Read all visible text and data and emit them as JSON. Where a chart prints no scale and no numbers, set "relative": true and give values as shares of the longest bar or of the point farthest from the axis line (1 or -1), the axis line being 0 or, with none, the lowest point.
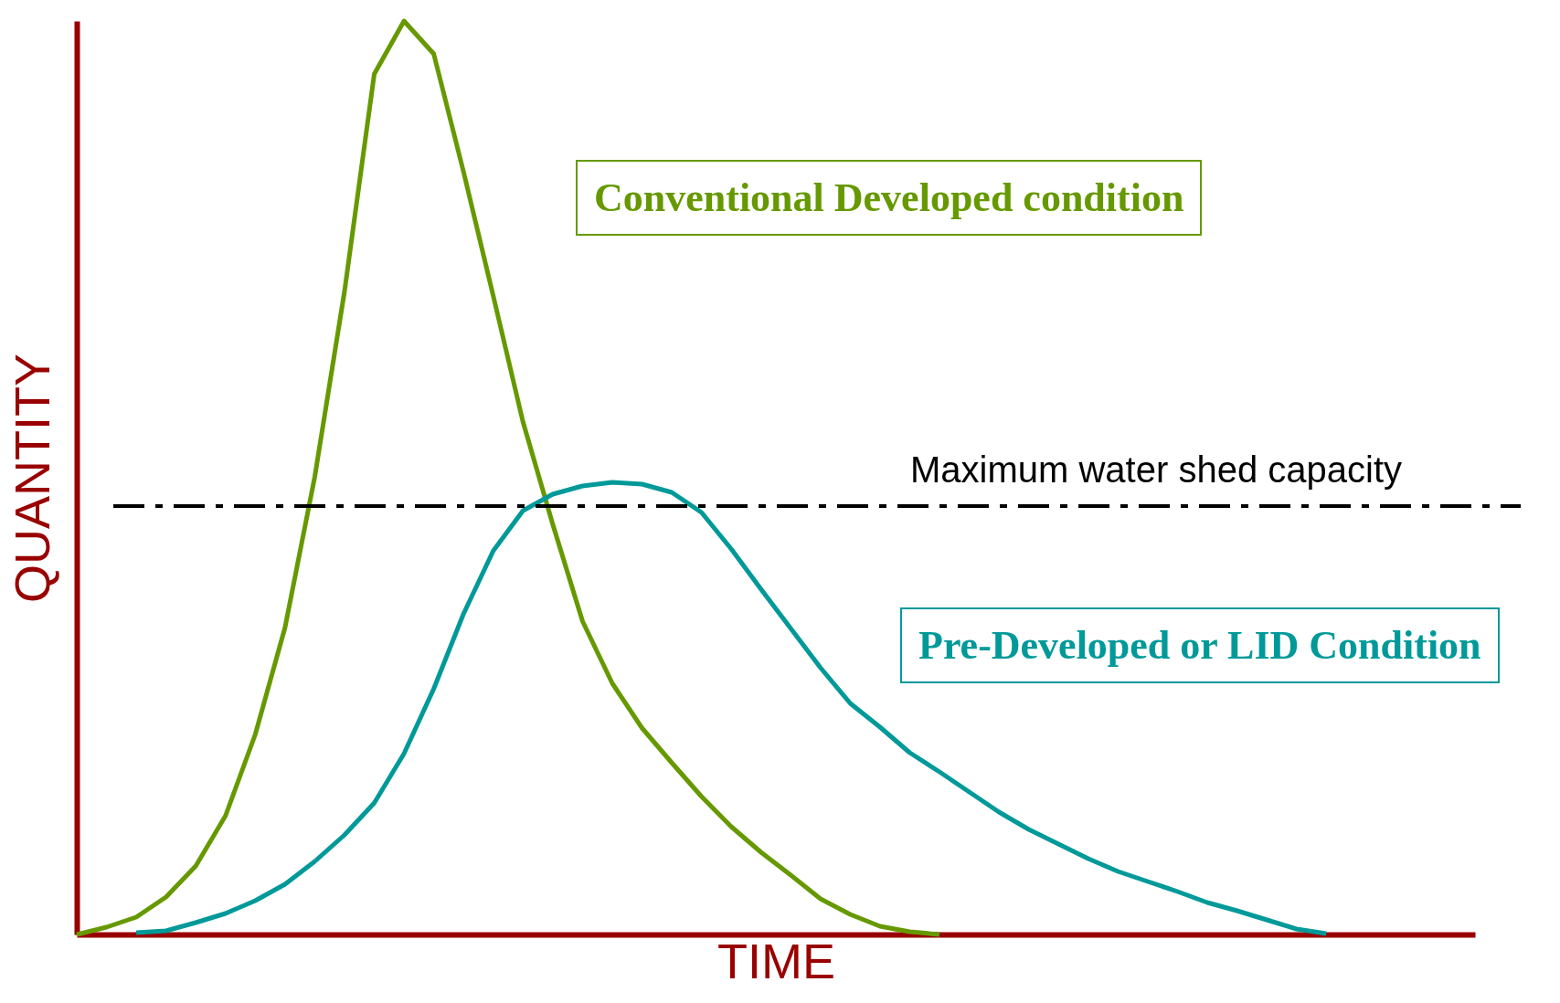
{
  "chart_data": {
    "type": "line",
    "relative": true,
    "xlabel": "TIME",
    "ylabel": "QUANTITY",
    "line_style": "solid",
    "categories": [
      null,
      null,
      null,
      null,
      null,
      null,
      null,
      null,
      null,
      null,
      null,
      null,
      null,
      null,
      null,
      null,
      null,
      null,
      null,
      null,
      null,
      null,
      null,
      null,
      null,
      null,
      null,
      null,
      null,
      null,
      null,
      null,
      null,
      null,
      null,
      null,
      null,
      null,
      null,
      null,
      null,
      null,
      null,
      null,
      null,
      null,
      null,
      null
    ],
    "series": [
      {
        "name": "Conventional Developed condition",
        "color": "#669900",
        "values": [
          0,
          0.008,
          0.019,
          0.041,
          0.075,
          0.13,
          0.219,
          0.336,
          0.501,
          0.704,
          0.942,
          1,
          0.964,
          0.835,
          0.699,
          0.561,
          0.449,
          0.343,
          0.275,
          0.226,
          0.188,
          0.151,
          0.118,
          0.09,
          0.065,
          0.039,
          0.022,
          0.009,
          0.003,
          0,
          null,
          null,
          null,
          null,
          null,
          null,
          null,
          null,
          null,
          null,
          null,
          null,
          null,
          null,
          null,
          null,
          null,
          null
        ]
      },
      {
        "name": "Pre-Developed or LID Condition",
        "color": "#009999",
        "values": [
          null,
          null,
          0.002,
          0.004,
          0.013,
          0.023,
          0.037,
          0.055,
          0.08,
          0.109,
          0.144,
          0.198,
          0.269,
          0.351,
          0.42,
          0.464,
          0.482,
          0.491,
          0.495,
          0.493,
          0.484,
          0.462,
          0.422,
          0.378,
          0.335,
          0.292,
          0.253,
          0.227,
          0.199,
          0.178,
          0.156,
          0.134,
          0.115,
          0.099,
          0.083,
          0.069,
          0.058,
          0.047,
          0.035,
          0.026,
          0.016,
          0.006,
          0.001,
          null,
          null,
          null,
          null,
          null
        ]
      }
    ],
    "ref_lines": [
      {
        "axis": "y",
        "value": 0.469,
        "label": "Maximum water shed capacity",
        "color": "#000000",
        "line_style": "dashdot"
      }
    ]
  }
}
